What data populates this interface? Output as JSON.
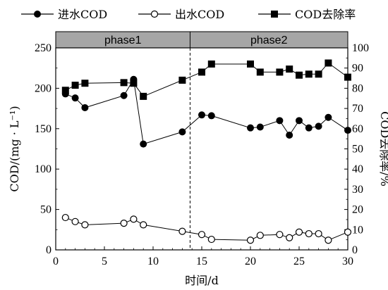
{
  "chart_data": {
    "type": "line",
    "legend": {
      "position": "top",
      "items": [
        {
          "label": "进水COD",
          "marker": "filled-circle"
        },
        {
          "label": "出水COD",
          "marker": "open-circle"
        },
        {
          "label": "COD去除率",
          "marker": "filled-square"
        }
      ]
    },
    "phases": [
      {
        "label": "phase1",
        "x_range": [
          0,
          13.8
        ]
      },
      {
        "label": "phase2",
        "x_range": [
          13.8,
          30
        ]
      }
    ],
    "phase_divider_x": 13.8,
    "xlabel": "时间/d",
    "ylabel_left": "COD/(mg · L⁻¹)",
    "ylabel_right": "COD去除率/%",
    "xlim": [
      0,
      30
    ],
    "ylim_left": [
      0,
      250
    ],
    "ylim_right": [
      0,
      100
    ],
    "xticks": [
      0,
      5,
      10,
      15,
      20,
      25,
      30
    ],
    "yticks_left": [
      0,
      50,
      100,
      150,
      200,
      250
    ],
    "yticks_right": [
      0,
      10,
      20,
      30,
      40,
      50,
      60,
      70,
      80,
      90,
      100
    ],
    "series": [
      {
        "name": "进水COD",
        "axis": "left",
        "marker": "filled-circle",
        "x": [
          1,
          2,
          3,
          7,
          8,
          9,
          13,
          15,
          16,
          20,
          21,
          23,
          24,
          25,
          26,
          27,
          28,
          30
        ],
        "y": [
          193,
          188,
          176,
          191,
          211,
          131,
          146,
          167,
          166,
          151,
          152,
          160,
          142,
          160,
          151,
          153,
          164,
          148
        ]
      },
      {
        "name": "出水COD",
        "axis": "left",
        "marker": "open-circle",
        "x": [
          1,
          2,
          3,
          7,
          8,
          9,
          13,
          15,
          16,
          20,
          21,
          23,
          24,
          25,
          26,
          27,
          28,
          30
        ],
        "y": [
          40,
          35,
          31,
          33,
          38,
          31,
          23,
          19,
          13,
          12,
          18,
          19,
          15,
          22,
          20,
          20,
          12,
          22
        ]
      },
      {
        "name": "COD去除率",
        "axis": "right",
        "marker": "filled-square",
        "x": [
          1,
          2,
          3,
          7,
          8,
          9,
          13,
          15,
          16,
          20,
          21,
          23,
          24,
          25,
          26,
          27,
          28,
          30
        ],
        "y": [
          79,
          81.5,
          82.5,
          82.8,
          82.5,
          76,
          84,
          88,
          92,
          92,
          88,
          88,
          89.5,
          86.5,
          87,
          87,
          92.5,
          85.5
        ]
      }
    ]
  }
}
